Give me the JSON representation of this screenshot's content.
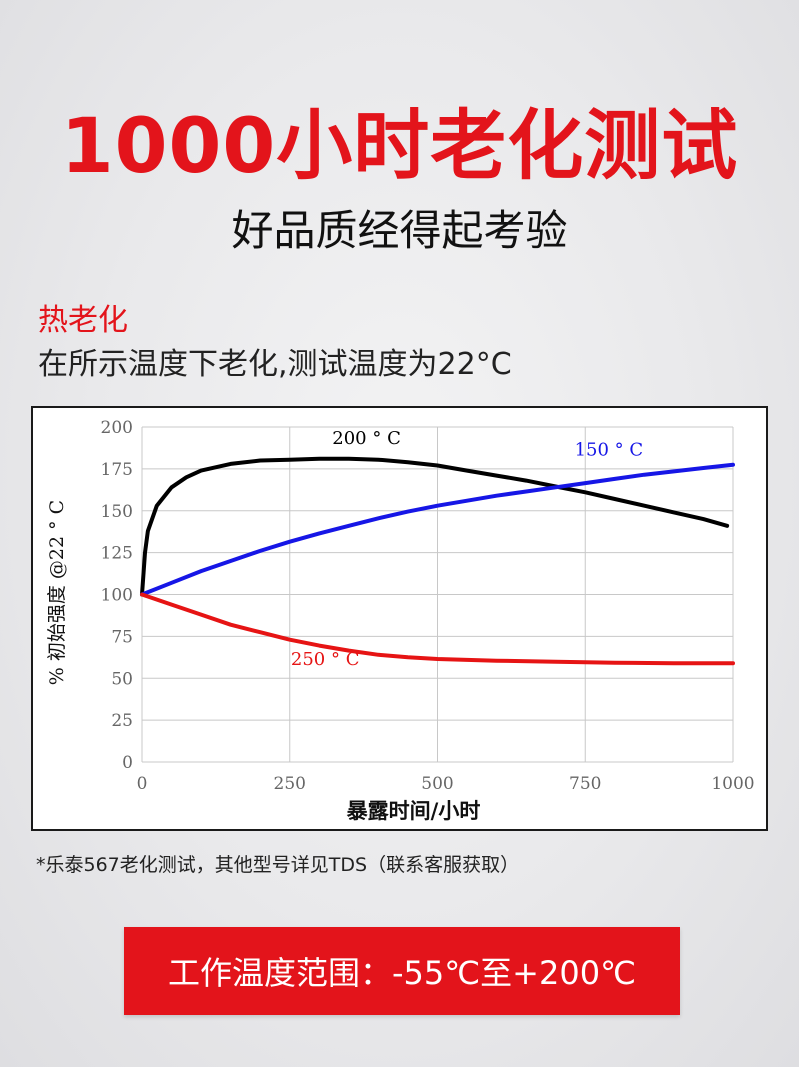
{
  "header": {
    "title": "1000小时老化测试",
    "subtitle": "好品质经得起考验"
  },
  "section": {
    "label": "热老化",
    "description": "在所示温度下老化,测试温度为22°C"
  },
  "chart_data": {
    "type": "line",
    "xlabel": "暴露时间/小时",
    "ylabel": "% 初始强度 @22 ° C",
    "xlim": [
      0,
      1000
    ],
    "ylim": [
      0,
      200
    ],
    "x_ticks": [
      0,
      250,
      500,
      750,
      1000
    ],
    "y_ticks": [
      0,
      25,
      50,
      75,
      100,
      125,
      150,
      175,
      200
    ],
    "grid": true,
    "series": [
      {
        "name": "200 ° C",
        "color": "#000000",
        "x": [
          0,
          5,
          10,
          25,
          50,
          75,
          100,
          150,
          200,
          250,
          300,
          350,
          400,
          450,
          500,
          550,
          600,
          650,
          700,
          750,
          800,
          850,
          900,
          950,
          990
        ],
        "y": [
          100,
          125,
          138,
          153,
          164,
          170,
          174,
          178,
          180,
          180.5,
          181,
          181,
          180.5,
          179,
          177,
          174,
          171,
          168,
          164.5,
          161,
          157,
          153,
          149,
          145,
          141
        ]
      },
      {
        "name": "150 ° C",
        "color": "#1616e6",
        "x": [
          0,
          50,
          100,
          150,
          200,
          250,
          300,
          350,
          400,
          450,
          500,
          550,
          600,
          650,
          700,
          750,
          800,
          850,
          900,
          950,
          1000
        ],
        "y": [
          100,
          107,
          114,
          120,
          126,
          131.5,
          136.5,
          141,
          145.5,
          149.5,
          153,
          156,
          159,
          161.5,
          164,
          166.5,
          169,
          171.5,
          173.5,
          175.5,
          177.5
        ]
      },
      {
        "name": "250 ° C",
        "color": "#e61414",
        "x": [
          0,
          50,
          100,
          150,
          200,
          250,
          300,
          350,
          400,
          450,
          500,
          600,
          700,
          800,
          900,
          1000
        ],
        "y": [
          100,
          94,
          88,
          82,
          77.5,
          73,
          69.5,
          66.5,
          64,
          62.5,
          61.5,
          60.5,
          59.8,
          59.3,
          59,
          59
        ]
      }
    ],
    "annotations": [
      {
        "text": "200 ° C",
        "x": 380,
        "y": 190,
        "color": "#000000"
      },
      {
        "text": "150 ° C",
        "x": 790,
        "y": 183,
        "color": "#1616e6"
      },
      {
        "text": "250 ° C",
        "x": 310,
        "y": 58,
        "color": "#e61414"
      }
    ]
  },
  "footer": {
    "note": "*乐泰567老化测试，其他型号详见TDS（联系客服获取）",
    "range": "工作温度范围：-55℃至+200℃"
  }
}
